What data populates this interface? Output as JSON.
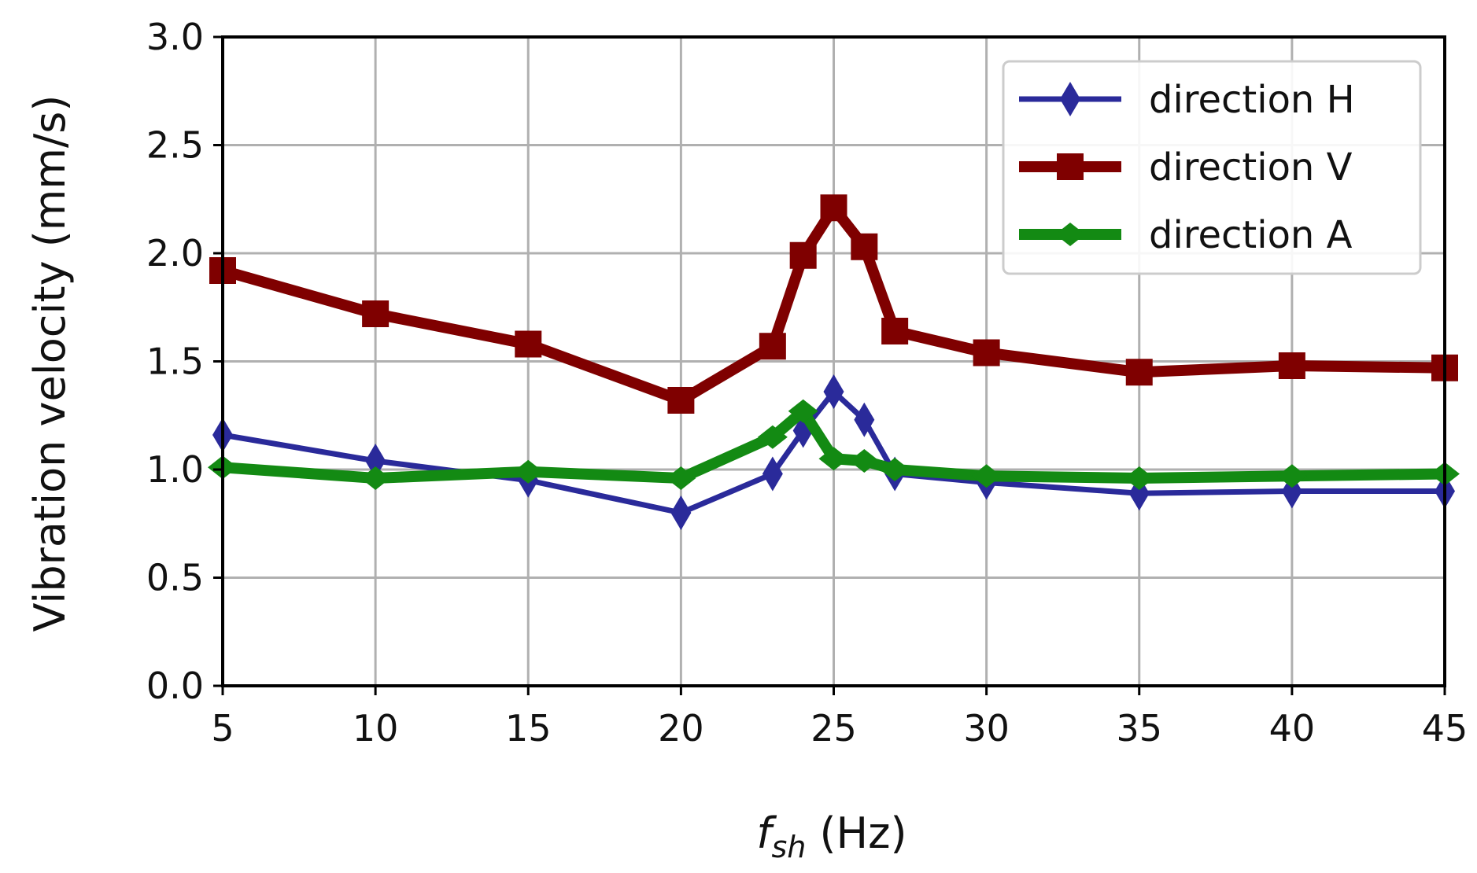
{
  "chart_data": {
    "type": "line",
    "xlabel_main": "f",
    "xlabel_sub": "sh",
    "xlabel_unit": " (Hz)",
    "ylabel": "Vibration velocity (mm/s)",
    "xlim": [
      5,
      45
    ],
    "ylim": [
      0,
      3
    ],
    "grid": true,
    "legend_position": "top-right",
    "x_ticks": [
      5,
      10,
      15,
      20,
      25,
      30,
      35,
      40,
      45
    ],
    "y_ticks": [
      0.0,
      0.5,
      1.0,
      1.5,
      2.0,
      2.5,
      3.0
    ],
    "x": [
      5,
      10,
      15,
      20,
      23,
      24,
      25,
      26,
      27,
      30,
      35,
      40,
      45
    ],
    "series": [
      {
        "name": "direction H",
        "color": "#2a2a9a",
        "marker": "diamond",
        "values": [
          1.16,
          1.04,
          0.95,
          0.8,
          0.98,
          1.18,
          1.36,
          1.23,
          0.98,
          0.94,
          0.89,
          0.9,
          0.9
        ]
      },
      {
        "name": "direction V",
        "color": "#7f0000",
        "marker": "square",
        "values": [
          1.92,
          1.72,
          1.58,
          1.32,
          1.57,
          1.99,
          2.21,
          2.03,
          1.64,
          1.54,
          1.45,
          1.48,
          1.47
        ]
      },
      {
        "name": "direction A",
        "color": "#138a13",
        "marker": "diamond",
        "values": [
          1.01,
          0.96,
          0.99,
          0.96,
          1.15,
          1.27,
          1.05,
          1.04,
          1.0,
          0.97,
          0.96,
          0.97,
          0.98
        ]
      }
    ]
  }
}
